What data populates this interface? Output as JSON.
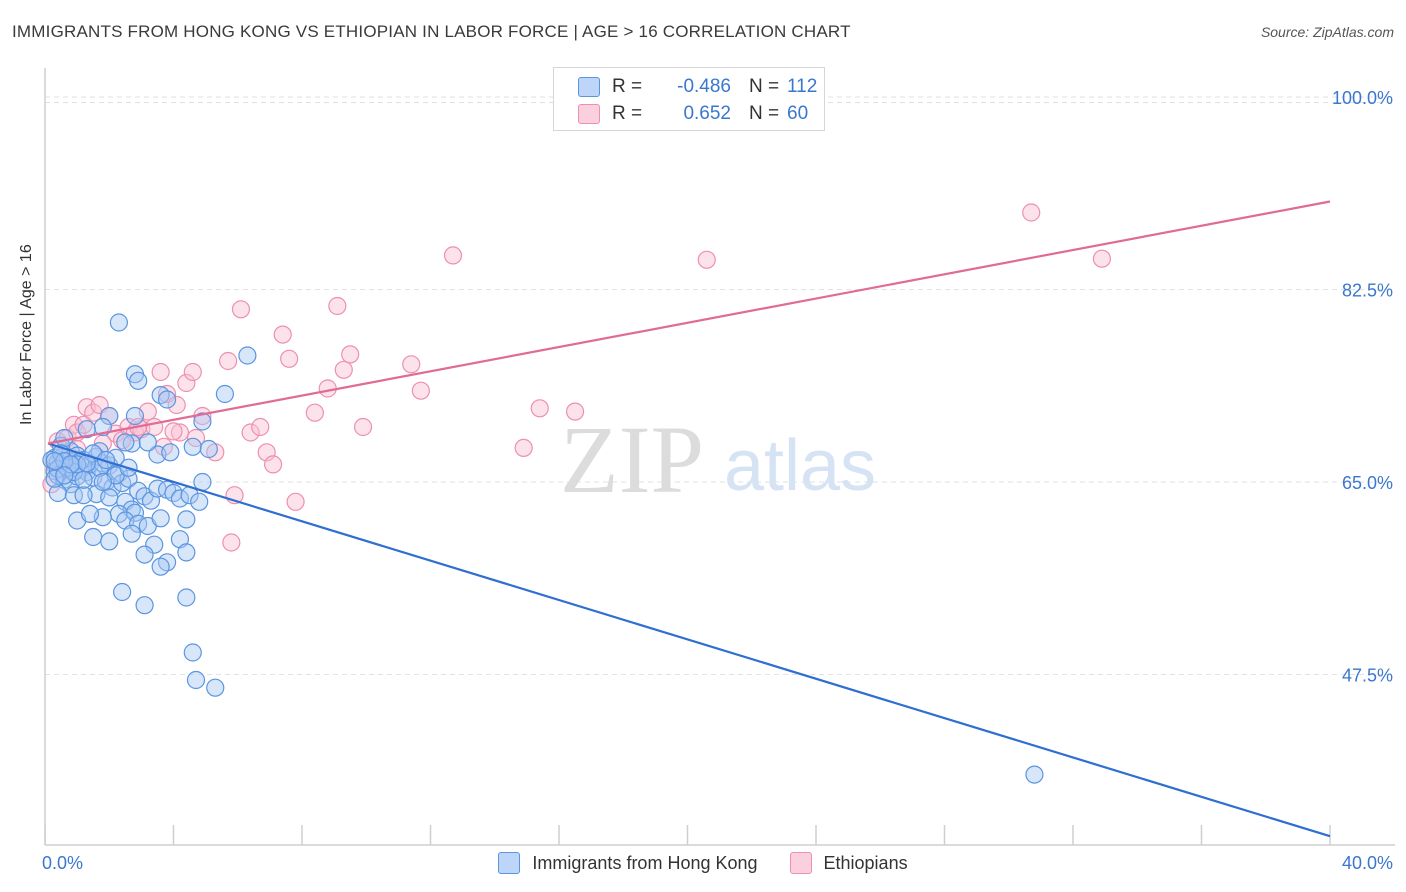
{
  "title": "IMMIGRANTS FROM HONG KONG VS ETHIOPIAN IN LABOR FORCE | AGE > 16 CORRELATION CHART",
  "source": "Source: ZipAtlas.com",
  "watermark": {
    "zip": "ZIP",
    "atlas": "atlas"
  },
  "legend": {
    "r_label": "R =",
    "n_label": "N =",
    "items": [
      {
        "r": "-0.486",
        "n": "112"
      },
      {
        "r": "0.652",
        "n": "60"
      }
    ]
  },
  "colors": {
    "blue_fill": "#a9c8f5",
    "blue_stroke": "#5a95e0",
    "blue_line": "#2e6fd0",
    "pink_fill": "#f8bfd3",
    "pink_stroke": "#ee8fae",
    "pink_line": "#e06b94",
    "axis_text": "#3a77cf",
    "grid": "#e2e2e2"
  },
  "chart_data": {
    "type": "scatter",
    "title": "IMMIGRANTS FROM HONG KONG VS ETHIOPIAN IN LABOR FORCE | AGE > 16 CORRELATION CHART",
    "xlabel": "",
    "ylabel": "In Labor Force | Age > 16",
    "xlim": [
      0,
      40
    ],
    "ylim": [
      32,
      102
    ],
    "x_tick_labels": [
      "0.0%",
      "40.0%"
    ],
    "y_ticks": [
      47.5,
      65.0,
      82.5,
      100.0
    ],
    "y_tick_labels": [
      "47.5%",
      "65.0%",
      "82.5%",
      "100.0%"
    ],
    "grid": true,
    "legend_position": "top-center",
    "series": [
      {
        "name": "Immigrants from Hong Kong",
        "color": "#5a95e0",
        "trend": {
          "x": [
            0.0,
            40.0
          ],
          "y": [
            68.5,
            32.8
          ]
        },
        "points": [
          [
            0.3,
            67.2
          ],
          [
            0.4,
            66.8
          ],
          [
            0.5,
            66.5
          ],
          [
            0.3,
            66.0
          ],
          [
            0.6,
            67.5
          ],
          [
            0.8,
            67.8
          ],
          [
            0.5,
            68.3
          ],
          [
            0.4,
            65.6
          ],
          [
            0.7,
            66.2
          ],
          [
            0.9,
            66.9
          ],
          [
            1.0,
            67.4
          ],
          [
            1.1,
            66.1
          ],
          [
            1.3,
            65.9
          ],
          [
            1.2,
            67.0
          ],
          [
            0.6,
            65.2
          ],
          [
            0.8,
            64.8
          ],
          [
            1.0,
            65.5
          ],
          [
            1.5,
            65.4
          ],
          [
            1.4,
            66.6
          ],
          [
            1.6,
            67.3
          ],
          [
            1.8,
            66.7
          ],
          [
            2.0,
            66.5
          ],
          [
            1.7,
            67.8
          ],
          [
            2.2,
            67.2
          ],
          [
            2.3,
            65.8
          ],
          [
            1.9,
            65.0
          ],
          [
            2.1,
            64.5
          ],
          [
            2.4,
            64.9
          ],
          [
            2.6,
            65.3
          ],
          [
            0.4,
            64.0
          ],
          [
            0.9,
            63.8
          ],
          [
            1.6,
            63.9
          ],
          [
            2.0,
            63.6
          ],
          [
            2.5,
            63.2
          ],
          [
            2.9,
            64.2
          ],
          [
            3.1,
            63.7
          ],
          [
            3.3,
            63.3
          ],
          [
            3.5,
            64.4
          ],
          [
            3.8,
            64.3
          ],
          [
            4.0,
            64.0
          ],
          [
            4.2,
            63.5
          ],
          [
            4.5,
            63.8
          ],
          [
            4.8,
            63.2
          ],
          [
            2.7,
            62.5
          ],
          [
            2.3,
            62.1
          ],
          [
            2.8,
            62.2
          ],
          [
            2.5,
            61.5
          ],
          [
            2.9,
            61.2
          ],
          [
            1.0,
            61.5
          ],
          [
            1.8,
            61.8
          ],
          [
            3.2,
            61.0
          ],
          [
            3.6,
            61.7
          ],
          [
            4.4,
            61.6
          ],
          [
            1.5,
            60.0
          ],
          [
            2.0,
            59.6
          ],
          [
            2.7,
            60.3
          ],
          [
            3.4,
            59.3
          ],
          [
            4.2,
            59.8
          ],
          [
            3.1,
            58.4
          ],
          [
            3.8,
            57.7
          ],
          [
            4.4,
            58.6
          ],
          [
            3.6,
            57.3
          ],
          [
            2.4,
            55.0
          ],
          [
            3.1,
            53.8
          ],
          [
            4.4,
            54.5
          ],
          [
            4.6,
            49.5
          ],
          [
            4.7,
            47.0
          ],
          [
            5.3,
            46.3
          ],
          [
            2.3,
            79.5
          ],
          [
            2.8,
            74.8
          ],
          [
            3.6,
            72.9
          ],
          [
            3.8,
            72.5
          ],
          [
            5.6,
            73.0
          ],
          [
            6.3,
            76.5
          ],
          [
            2.9,
            74.2
          ],
          [
            2.0,
            71.0
          ],
          [
            2.8,
            71.0
          ],
          [
            1.8,
            70.0
          ],
          [
            1.3,
            69.8
          ],
          [
            2.7,
            68.5
          ],
          [
            3.5,
            67.5
          ],
          [
            3.9,
            67.7
          ],
          [
            4.6,
            68.2
          ],
          [
            5.1,
            68.0
          ],
          [
            2.5,
            68.6
          ],
          [
            3.2,
            68.6
          ],
          [
            4.9,
            70.5
          ],
          [
            0.6,
            69.0
          ],
          [
            4.9,
            65.0
          ],
          [
            1.2,
            63.8
          ],
          [
            1.4,
            62.1
          ],
          [
            0.2,
            67.0
          ],
          [
            0.5,
            67.6
          ],
          [
            0.7,
            66.3
          ],
          [
            1.1,
            66.9
          ],
          [
            0.9,
            65.9
          ],
          [
            1.7,
            66.3
          ],
          [
            2.2,
            65.6
          ],
          [
            1.0,
            66.6
          ],
          [
            0.4,
            66.2
          ],
          [
            0.6,
            66.9
          ],
          [
            0.8,
            66.6
          ],
          [
            1.5,
            67.6
          ],
          [
            1.9,
            67.0
          ],
          [
            2.6,
            66.3
          ],
          [
            0.3,
            65.3
          ],
          [
            0.6,
            65.6
          ],
          [
            1.3,
            66.7
          ],
          [
            1.2,
            65.2
          ],
          [
            1.8,
            65.0
          ],
          [
            30.8,
            38.4
          ],
          [
            0.3,
            66.9
          ]
        ]
      },
      {
        "name": "Ethiopians",
        "color": "#ee8fae",
        "trend": {
          "x": [
            0.0,
            40.0
          ],
          "y": [
            68.5,
            90.5
          ]
        },
        "points": [
          [
            0.3,
            66.5
          ],
          [
            0.5,
            67.2
          ],
          [
            0.4,
            68.7
          ],
          [
            0.7,
            69.0
          ],
          [
            0.9,
            70.2
          ],
          [
            1.0,
            69.5
          ],
          [
            1.3,
            71.8
          ],
          [
            1.5,
            71.3
          ],
          [
            1.7,
            72.0
          ],
          [
            2.0,
            71.0
          ],
          [
            2.2,
            69.4
          ],
          [
            2.4,
            68.8
          ],
          [
            2.6,
            70.0
          ],
          [
            2.8,
            69.5
          ],
          [
            3.0,
            69.8
          ],
          [
            3.2,
            71.4
          ],
          [
            3.4,
            70.0
          ],
          [
            3.6,
            75.0
          ],
          [
            3.8,
            73.0
          ],
          [
            4.1,
            72.0
          ],
          [
            4.2,
            69.5
          ],
          [
            4.4,
            74.0
          ],
          [
            4.6,
            75.0
          ],
          [
            4.7,
            69.0
          ],
          [
            4.9,
            71.0
          ],
          [
            5.3,
            67.7
          ],
          [
            5.7,
            76.0
          ],
          [
            5.9,
            63.8
          ],
          [
            6.1,
            80.7
          ],
          [
            6.4,
            69.5
          ],
          [
            6.7,
            70.0
          ],
          [
            6.9,
            67.7
          ],
          [
            7.1,
            66.6
          ],
          [
            7.4,
            78.4
          ],
          [
            7.6,
            76.2
          ],
          [
            7.8,
            63.2
          ],
          [
            8.4,
            71.3
          ],
          [
            8.8,
            73.5
          ],
          [
            9.1,
            81.0
          ],
          [
            9.3,
            75.2
          ],
          [
            9.5,
            76.6
          ],
          [
            9.9,
            70.0
          ],
          [
            11.4,
            75.7
          ],
          [
            11.7,
            73.3
          ],
          [
            12.7,
            85.6
          ],
          [
            14.9,
            68.1
          ],
          [
            15.4,
            71.7
          ],
          [
            16.5,
            71.4
          ],
          [
            20.6,
            85.2
          ],
          [
            30.7,
            89.5
          ],
          [
            32.9,
            85.3
          ],
          [
            5.8,
            59.5
          ],
          [
            1.0,
            68.0
          ],
          [
            0.2,
            64.8
          ],
          [
            1.8,
            68.5
          ],
          [
            2.9,
            70.0
          ],
          [
            0.6,
            66.0
          ],
          [
            1.2,
            70.2
          ],
          [
            4.0,
            69.6
          ],
          [
            3.7,
            68.2
          ]
        ]
      }
    ]
  }
}
